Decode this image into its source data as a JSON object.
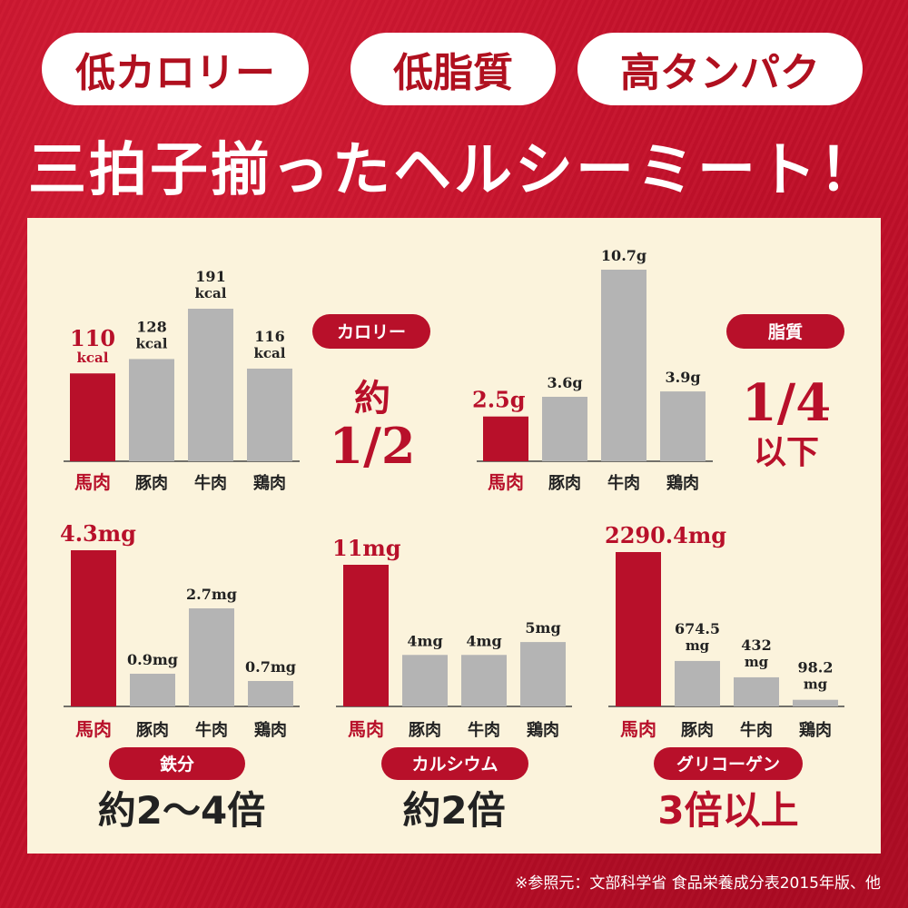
{
  "header": {
    "pills": [
      "低カロリー",
      "低脂質",
      "高タンパク"
    ],
    "headline": "三拍子揃ったヘルシーミート！"
  },
  "colors": {
    "accent": "#b8102a",
    "bar": "#b4b4b4",
    "panel": "#fbf3dc"
  },
  "chart_data": [
    {
      "type": "bar",
      "badge": "カロリー",
      "summary_top": "約",
      "summary_bottom": "1/2",
      "categories": [
        "馬肉",
        "豚肉",
        "牛肉",
        "鶏肉"
      ],
      "values": [
        110,
        128,
        191,
        116
      ],
      "value_labels": [
        [
          "110",
          "kcal"
        ],
        [
          "128",
          "kcal"
        ],
        [
          "191",
          "kcal"
        ],
        [
          "116",
          "kcal"
        ]
      ]
    },
    {
      "type": "bar",
      "badge": "脂質",
      "summary_top": "1/4",
      "summary_bottom": "以下",
      "categories": [
        "馬肉",
        "豚肉",
        "牛肉",
        "鶏肉"
      ],
      "values": [
        2.5,
        3.6,
        10.7,
        3.9
      ],
      "value_labels": [
        [
          "2.5g"
        ],
        [
          "3.6g"
        ],
        [
          "10.7g"
        ],
        [
          "3.9g"
        ]
      ]
    },
    {
      "type": "bar",
      "badge": "鉄分",
      "summary": "約2～4倍",
      "categories": [
        "馬肉",
        "豚肉",
        "牛肉",
        "鶏肉"
      ],
      "values": [
        4.3,
        0.9,
        2.7,
        0.7
      ],
      "value_labels": [
        [
          "4.3mg"
        ],
        [
          "0.9mg"
        ],
        [
          "2.7mg"
        ],
        [
          "0.7mg"
        ]
      ]
    },
    {
      "type": "bar",
      "badge": "カルシウム",
      "summary": "約2倍",
      "categories": [
        "馬肉",
        "豚肉",
        "牛肉",
        "鶏肉"
      ],
      "values": [
        11,
        4,
        4,
        5
      ],
      "value_labels": [
        [
          "11mg"
        ],
        [
          "4mg"
        ],
        [
          "4mg"
        ],
        [
          "5mg"
        ]
      ]
    },
    {
      "type": "bar",
      "badge": "グリコーゲン",
      "summary": "3倍以上",
      "categories": [
        "馬肉",
        "豚肉",
        "牛肉",
        "鶏肉"
      ],
      "values": [
        2290.4,
        674.5,
        432,
        98.2
      ],
      "value_labels": [
        [
          "2290.4mg"
        ],
        [
          "674.5",
          "mg"
        ],
        [
          "432",
          "mg"
        ],
        [
          "98.2",
          "mg"
        ]
      ]
    }
  ],
  "footnote": "※参照元：文部科学省 食品栄養成分表2015年版、他"
}
